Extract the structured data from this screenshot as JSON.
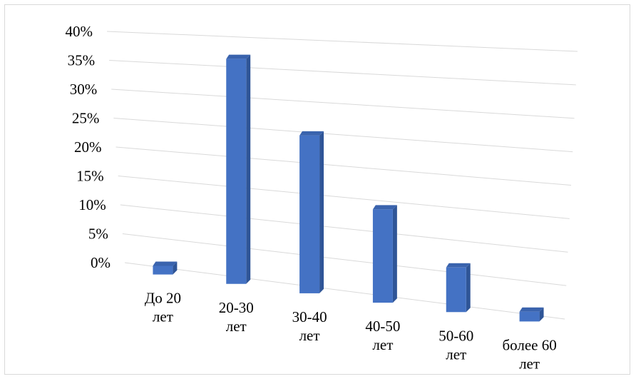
{
  "chart_data": {
    "type": "bar",
    "style": "3d-perspective",
    "categories": [
      [
        "До 20",
        "лет"
      ],
      [
        "20-30",
        "лет"
      ],
      [
        "30-40",
        "лет"
      ],
      [
        "40-50",
        "лет"
      ],
      [
        "50-60",
        "лет"
      ],
      [
        "более 60",
        "лет"
      ]
    ],
    "values": [
      1.5,
      38,
      26,
      15,
      7,
      1.5
    ],
    "y_ticks": [
      "0%",
      "5%",
      "10%",
      "15%",
      "20%",
      "25%",
      "30%",
      "35%",
      "40%"
    ],
    "ylim": [
      0,
      40
    ],
    "grid": true,
    "legend": "none",
    "colors": {
      "front": "#4472c4",
      "side": "#2f5597",
      "top": "#3a63ad",
      "grid": "#d9d9d9"
    }
  }
}
